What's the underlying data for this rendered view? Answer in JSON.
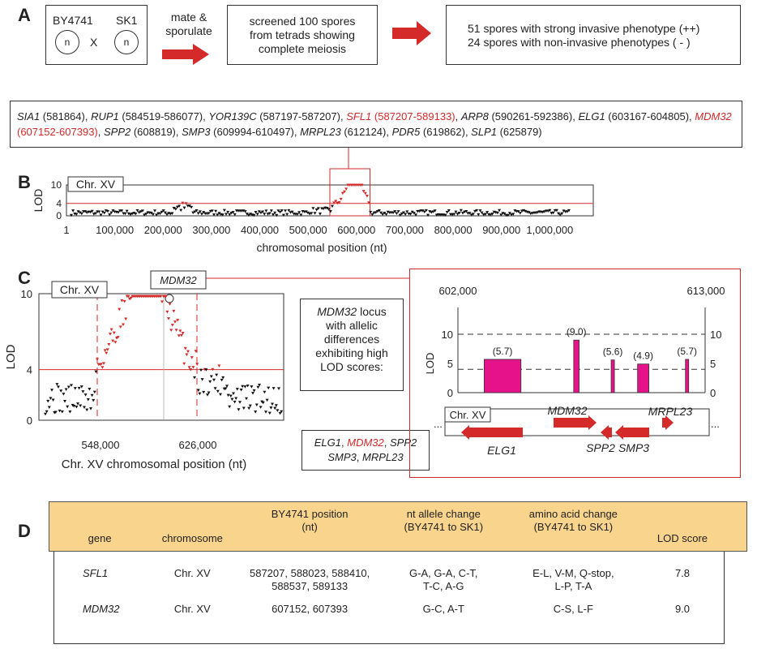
{
  "panels": {
    "a": "A",
    "b": "B",
    "c": "C",
    "d": "D"
  },
  "panel_a": {
    "strain1": "BY4741",
    "strain2": "SK1",
    "cell_label": "n",
    "cross": "X",
    "step1": "mate &\nsporulate",
    "step2": "screened 100 spores\nfrom tetrads showing\ncomplete meiosis",
    "result1": "51 spores with strong invasive phenotype (++)",
    "result2": "24 spores with non-invasive phenotypes ( - )"
  },
  "gene_list": [
    {
      "gene": "SIA1",
      "pos": "(581864)",
      "red": false
    },
    {
      "gene": "RUP1",
      "pos": "(584519-586077)",
      "red": false
    },
    {
      "gene": "YOR139C",
      "pos": "(587197-587207)",
      "red": false
    },
    {
      "gene": "SFL1",
      "pos": "(587207-589133)",
      "red": true
    },
    {
      "gene": "ARP8",
      "pos": "(590261-592386)",
      "red": false
    },
    {
      "gene": "ELG1",
      "pos": "(603167-604805)",
      "red": false
    },
    {
      "gene": "MDM32",
      "pos": "(607152-607393)",
      "red": true
    },
    {
      "gene": "SPP2",
      "pos": "(608819)",
      "red": false
    },
    {
      "gene": "SMP3",
      "pos": "(609994-610497)",
      "red": false
    },
    {
      "gene": "MRPL23",
      "pos": "(612124)",
      "red": false
    },
    {
      "gene": "PDR5",
      "pos": "(619862)",
      "red": false
    },
    {
      "gene": "SLP1",
      "pos": "(625879)",
      "red": false
    }
  ],
  "chart_data": [
    {
      "type": "scatter",
      "chrom_label": "Chr. XV",
      "ylabel": "LOD",
      "xlabel": "chromosomal position (nt)",
      "yticks": [
        "10",
        "4",
        "0"
      ],
      "xticks": [
        "1",
        "100,000",
        "200,000",
        "300,000",
        "400,000",
        "500,000",
        "600,000",
        "700,000",
        "800,000",
        "900,000",
        "1,000,000"
      ],
      "threshold": 4,
      "xlim": [
        1,
        1090000
      ],
      "ylim": [
        0,
        10
      ],
      "colors": {
        "low": "#111111",
        "high": "#d42a2a"
      }
    },
    {
      "type": "scatter",
      "chrom_label": "Chr. XV",
      "callout": "MDM32",
      "ylabel": "LOD",
      "xlabel": "Chr. XV chromosomal position (nt)",
      "yticks": [
        "10",
        "4",
        "0"
      ],
      "xticks": [
        "548,000",
        "626,000"
      ],
      "threshold": 4,
      "ylim": [
        0,
        10
      ]
    },
    {
      "type": "bar",
      "xrange_labels": [
        "602,000",
        "613,000"
      ],
      "ylabel": "LOD",
      "yticks": [
        "10",
        "5",
        "0"
      ],
      "ylim": [
        0,
        10
      ],
      "thresholds": [
        10,
        4
      ],
      "bars": [
        {
          "label": "(5.7)",
          "value": 5.7,
          "start": 603167,
          "end": 604805
        },
        {
          "label": "(9.0)",
          "value": 9.0,
          "start": 607152,
          "end": 607393
        },
        {
          "label": "(5.6)",
          "value": 5.6,
          "start": 608819,
          "end": 608950
        },
        {
          "label": "(4.9)",
          "value": 4.9,
          "start": 609994,
          "end": 610497
        },
        {
          "label": "(5.7)",
          "value": 5.7,
          "start": 612124,
          "end": 612260
        }
      ],
      "bar_color": "#e5128a",
      "chrom_label": "Chr. XV",
      "ellipsis": "...",
      "genes_above": [
        "MDM32",
        "MRPL23"
      ],
      "genes_below": [
        "ELG1",
        "SPP2",
        "SMP3"
      ]
    }
  ],
  "panel_c": {
    "locus_text": [
      "MDM32",
      " locus",
      "with allelic",
      "differences",
      "exhibiting high",
      "LOD scores:"
    ],
    "gene_box": [
      {
        "gene": "ELG1",
        "red": false
      },
      {
        "gene": "MDM32",
        "red": true
      },
      {
        "gene": "SPP2",
        "red": false
      },
      {
        "gene": "SMP3",
        "red": false
      },
      {
        "gene": "MRPL23",
        "red": false
      }
    ]
  },
  "table": {
    "headers": [
      "gene",
      "chromosome",
      "BY4741 position\n(nt)",
      "nt allele change\n(BY4741 to SK1)",
      "amino acid change\n(BY4741 to SK1)",
      "LOD score"
    ],
    "rows": [
      [
        "SFL1",
        "Chr. XV",
        "587207, 588023, 588410,\n588537, 589133",
        "G-A, G-A, C-T,\nT-C, A-G",
        "E-L, V-M, Q-stop,\nL-P, T-A",
        "7.8"
      ],
      [
        "MDM32",
        "Chr. XV",
        "607152, 607393",
        "G-C, A-T",
        "C-S, L-F",
        "9.0"
      ]
    ],
    "header_bg": "#f9d48c"
  }
}
